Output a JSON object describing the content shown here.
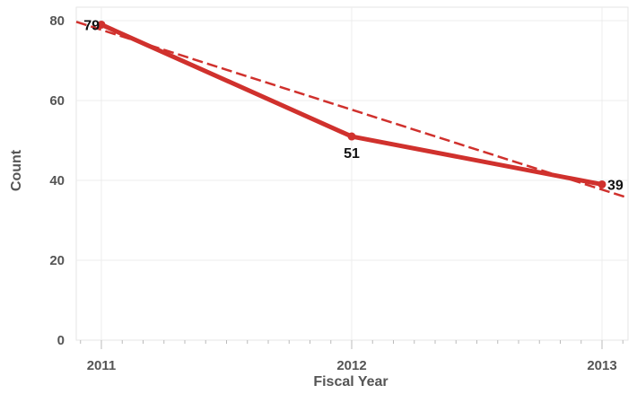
{
  "chart_data": {
    "type": "line",
    "x": [
      "2011",
      "2012",
      "2013"
    ],
    "series": [
      {
        "values": [
          79,
          51,
          39
        ],
        "labels": [
          "79",
          "51",
          "39"
        ],
        "color": "#d0312d"
      }
    ],
    "trend_line": {
      "style": "dashed",
      "color": "#d0312d",
      "start": 77.7,
      "end": 37.7
    },
    "xlabel": "Fiscal Year",
    "ylabel": "Count",
    "yticks": [
      "0",
      "20",
      "40",
      "60",
      "80"
    ],
    "ylim": [
      0,
      80
    ],
    "grid": true
  }
}
